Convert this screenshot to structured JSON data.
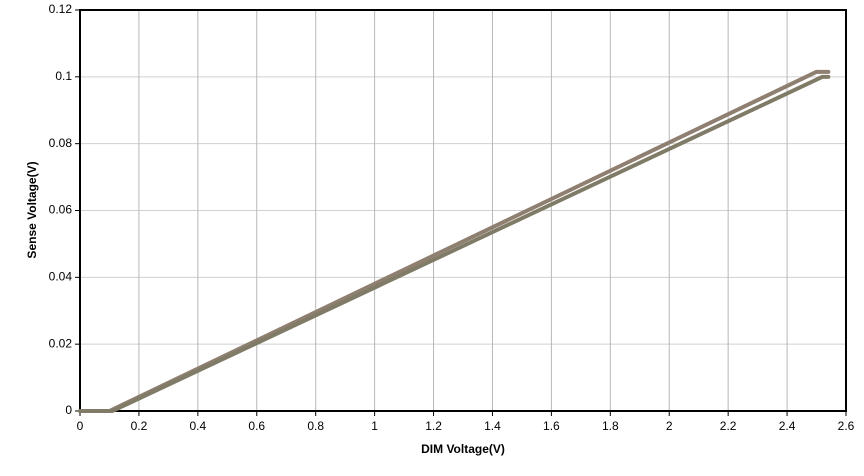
{
  "chart_data": {
    "type": "line",
    "xlabel": "DIM Voltage(V)",
    "ylabel": "Sense Voltage(V)",
    "xlim": [
      0,
      2.6
    ],
    "xticks": [
      0,
      0.2,
      0.4,
      0.6,
      0.8,
      1,
      1.2,
      1.4,
      1.6,
      1.8,
      2,
      2.2,
      2.4,
      2.6
    ],
    "ylim": [
      0,
      0.12
    ],
    "yticks": [
      0,
      0.02,
      0.04,
      0.06,
      0.08,
      0.1,
      0.12
    ],
    "grid": true,
    "series": [
      {
        "color": "#8e7f70",
        "x": [
          0,
          0.1,
          2.5,
          2.54
        ],
        "values": [
          0,
          0,
          0.1015,
          0.1015
        ]
      },
      {
        "color": "#807b67",
        "x": [
          0,
          0.11,
          2.52,
          2.54
        ],
        "values": [
          0,
          0,
          0.1,
          0.1
        ]
      }
    ]
  }
}
